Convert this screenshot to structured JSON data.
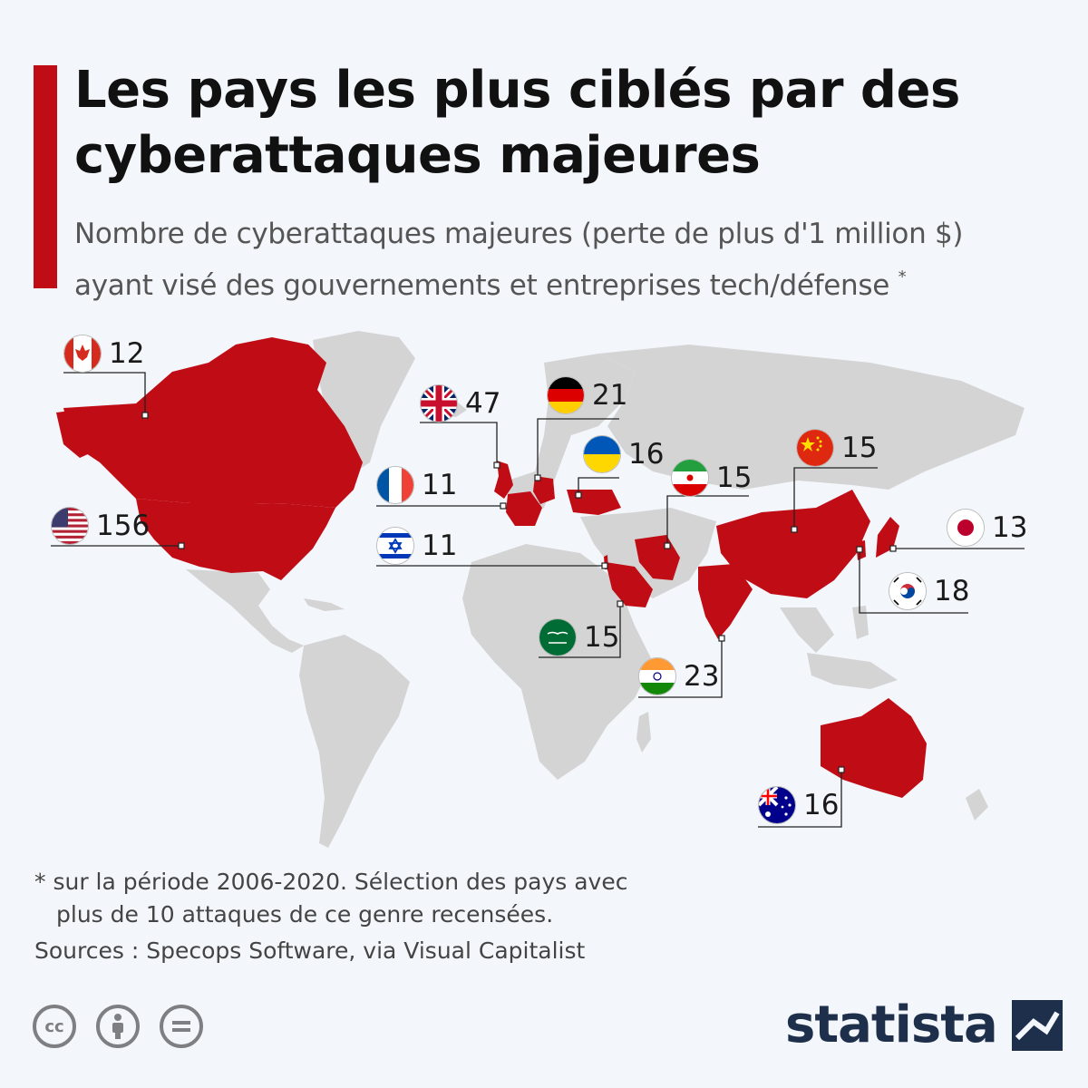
{
  "title": "Les pays les plus ciblés par des cyberattaques majeures",
  "subtitle_line1": "Nombre de cyberattaques majeures (perte de plus d'1 million $)",
  "subtitle_line2": "ayant visé des gouvernements et entreprises tech/défense",
  "subtitle_mark": "*",
  "colors": {
    "highlight": "#c00d15",
    "land": "#d4d4d4",
    "background": "#f3f6fa",
    "accent": "#c00d15",
    "brand": "#1e2f4c"
  },
  "countries": [
    {
      "name": "Canada",
      "flag": "canada-flag",
      "value": "12"
    },
    {
      "name": "Royaume-Uni",
      "flag": "uk-flag",
      "value": "47"
    },
    {
      "name": "Allemagne",
      "flag": "germany-flag",
      "value": "21"
    },
    {
      "name": "Ukraine",
      "flag": "ukraine-flag",
      "value": "16"
    },
    {
      "name": "France",
      "flag": "france-flag",
      "value": "11"
    },
    {
      "name": "Iran",
      "flag": "iran-flag",
      "value": "15"
    },
    {
      "name": "Chine",
      "flag": "china-flag",
      "value": "15"
    },
    {
      "name": "États-Unis",
      "flag": "usa-flag",
      "value": "156"
    },
    {
      "name": "Israël",
      "flag": "israel-flag",
      "value": "11"
    },
    {
      "name": "Japon",
      "flag": "japan-flag",
      "value": "13"
    },
    {
      "name": "Corée du Sud",
      "flag": "south-korea-flag",
      "value": "18"
    },
    {
      "name": "Arabie saoudite",
      "flag": "saudi-arabia-flag",
      "value": "15"
    },
    {
      "name": "Inde",
      "flag": "india-flag",
      "value": "23"
    },
    {
      "name": "Australie",
      "flag": "australia-flag",
      "value": "16"
    }
  ],
  "footnote_line1": "* sur la période 2006-2020. Sélection des pays avec",
  "footnote_line2": "plus de 10 attaques de ce genre recensées.",
  "sources": "Sources : Specops Software, via Visual Capitalist",
  "license_icons": [
    "cc-icon",
    "attribution-icon",
    "no-derivatives-icon"
  ],
  "brand": "statista"
}
